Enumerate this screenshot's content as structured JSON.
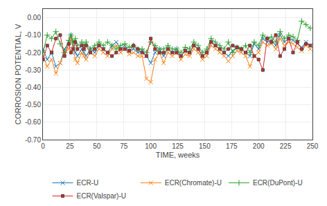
{
  "chart_data": {
    "type": "line",
    "xlabel": "TIME, weeks",
    "ylabel": "CORROSION POTENTIAL, V",
    "x": [
      0,
      4,
      8,
      12,
      16,
      20,
      24,
      26,
      28,
      30,
      32,
      36,
      38,
      40,
      44,
      48,
      52,
      56,
      60,
      64,
      68,
      72,
      76,
      80,
      84,
      88,
      92,
      96,
      100,
      104,
      108,
      112,
      116,
      120,
      124,
      128,
      132,
      136,
      140,
      144,
      148,
      152,
      156,
      160,
      164,
      168,
      172,
      176,
      180,
      184,
      188,
      192,
      196,
      200,
      204,
      208,
      212,
      216,
      220,
      224,
      228,
      232,
      236,
      240,
      244,
      248
    ],
    "series": [
      {
        "name": "ECR-U",
        "marker": "x",
        "values": [
          -0.18,
          -0.24,
          -0.2,
          -0.28,
          -0.26,
          -0.18,
          -0.14,
          -0.1,
          -0.16,
          -0.2,
          -0.22,
          -0.18,
          -0.2,
          -0.22,
          -0.18,
          -0.2,
          -0.16,
          -0.18,
          -0.2,
          -0.16,
          -0.14,
          -0.18,
          -0.16,
          -0.19,
          -0.18,
          -0.2,
          -0.19,
          -0.22,
          -0.26,
          -0.2,
          -0.18,
          -0.22,
          -0.18,
          -0.2,
          -0.18,
          -0.22,
          -0.19,
          -0.2,
          -0.16,
          -0.18,
          -0.22,
          -0.2,
          -0.14,
          -0.16,
          -0.18,
          -0.2,
          -0.22,
          -0.19,
          -0.17,
          -0.18,
          -0.2,
          -0.22,
          -0.15,
          -0.18,
          -0.12,
          -0.14,
          -0.13,
          -0.16,
          -0.1,
          -0.14,
          -0.12,
          -0.13,
          -0.15,
          -0.17,
          -0.14,
          -0.16
        ]
      },
      {
        "name": "ECR(Chromate)-U",
        "marker": "x",
        "values": [
          -0.22,
          -0.28,
          -0.24,
          -0.32,
          -0.26,
          -0.2,
          -0.18,
          -0.12,
          -0.18,
          -0.24,
          -0.26,
          -0.2,
          -0.22,
          -0.24,
          -0.2,
          -0.22,
          -0.18,
          -0.2,
          -0.22,
          -0.18,
          -0.16,
          -0.2,
          -0.18,
          -0.21,
          -0.2,
          -0.22,
          -0.22,
          -0.35,
          -0.37,
          -0.24,
          -0.2,
          -0.26,
          -0.2,
          -0.22,
          -0.2,
          -0.24,
          -0.21,
          -0.22,
          -0.18,
          -0.2,
          -0.24,
          -0.22,
          -0.16,
          -0.18,
          -0.2,
          -0.22,
          -0.25,
          -0.22,
          -0.19,
          -0.2,
          -0.22,
          -0.28,
          -0.22,
          -0.2,
          -0.14,
          -0.16,
          -0.15,
          -0.18,
          -0.12,
          -0.16,
          -0.14,
          -0.15,
          -0.17,
          -0.19,
          -0.16,
          -0.18
        ]
      },
      {
        "name": "ECR(DuPont)-U",
        "marker": "plus",
        "values": [
          -0.2,
          -0.1,
          -0.12,
          -0.08,
          -0.15,
          -0.2,
          -0.13,
          -0.1,
          -0.14,
          -0.12,
          -0.16,
          -0.14,
          -0.16,
          -0.14,
          -0.18,
          -0.16,
          -0.14,
          -0.16,
          -0.14,
          -0.16,
          -0.18,
          -0.16,
          -0.15,
          -0.17,
          -0.16,
          -0.18,
          -0.18,
          -0.2,
          -0.14,
          -0.16,
          -0.18,
          -0.18,
          -0.16,
          -0.18,
          -0.18,
          -0.2,
          -0.17,
          -0.18,
          -0.14,
          -0.16,
          -0.2,
          -0.18,
          -0.12,
          -0.14,
          -0.16,
          -0.18,
          -0.14,
          -0.2,
          -0.17,
          -0.18,
          -0.16,
          -0.2,
          -0.14,
          -0.16,
          -0.1,
          -0.12,
          -0.11,
          -0.14,
          -0.08,
          -0.12,
          -0.1,
          -0.11,
          -0.13,
          -0.02,
          -0.04,
          -0.06
        ]
      },
      {
        "name": "ECR(Valspar)-U",
        "marker": "square",
        "values": [
          -0.24,
          -0.16,
          -0.2,
          -0.12,
          -0.1,
          -0.22,
          -0.15,
          -0.2,
          -0.18,
          -0.14,
          -0.18,
          -0.16,
          -0.18,
          -0.16,
          -0.2,
          -0.18,
          -0.16,
          -0.18,
          -0.2,
          -0.22,
          -0.2,
          -0.18,
          -0.18,
          -0.19,
          -0.16,
          -0.18,
          -0.2,
          -0.22,
          -0.12,
          -0.18,
          -0.2,
          -0.2,
          -0.18,
          -0.2,
          -0.2,
          -0.22,
          -0.19,
          -0.2,
          -0.16,
          -0.18,
          -0.22,
          -0.2,
          -0.14,
          -0.16,
          -0.18,
          -0.2,
          -0.18,
          -0.16,
          -0.17,
          -0.18,
          -0.2,
          -0.16,
          -0.22,
          -0.24,
          -0.3,
          -0.12,
          -0.14,
          -0.1,
          -0.22,
          -0.18,
          -0.12,
          -0.2,
          -0.14,
          -0.18,
          -0.15,
          -0.16
        ]
      }
    ],
    "xlim": [
      0,
      250
    ],
    "xticks": [
      0,
      25,
      50,
      75,
      100,
      125,
      150,
      175,
      200,
      225,
      250
    ],
    "ylim": [
      -0.7,
      0.05
    ],
    "yticks": [
      {
        "value": 0.0,
        "label": "0.00"
      },
      {
        "value": -0.1,
        "label": "-0.10"
      },
      {
        "value": -0.2,
        "label": "-0.20"
      },
      {
        "value": -0.3,
        "label": "-0.30"
      },
      {
        "value": -0.4,
        "label": "-0.40"
      },
      {
        "value": -0.5,
        "label": "-0.50"
      },
      {
        "value": -0.6,
        "label": "-0.60"
      },
      {
        "value": -0.7,
        "label": "-0.70"
      }
    ],
    "grid": true,
    "legend": "bottom"
  }
}
